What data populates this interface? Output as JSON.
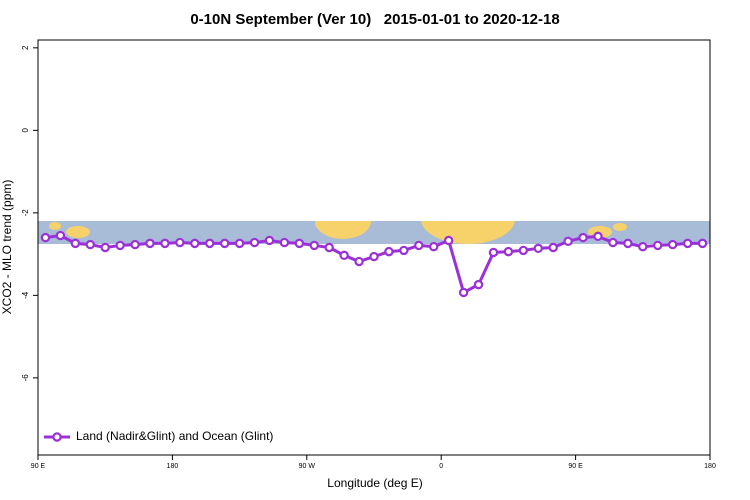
{
  "chart_data": {
    "type": "line",
    "title": "0-10N September (Ver 10)   2015-01-01 to 2020-12-18",
    "x_label": "Longitude (deg E)",
    "y_label": "XCO2 - MLO trend (ppm)",
    "x": [
      95,
      105,
      115,
      125,
      135,
      145,
      155,
      165,
      175,
      185,
      195,
      205,
      215,
      225,
      235,
      245,
      255,
      265,
      275,
      285,
      295,
      305,
      315,
      325,
      335,
      345,
      355,
      365,
      375,
      385,
      395,
      405,
      415,
      425,
      435,
      445,
      455,
      465,
      475,
      485,
      495,
      505,
      515,
      525,
      535
    ],
    "series": [
      {
        "name": "Land (Nadir&Glint) and Ocean (Glint)",
        "color": "#9b30d9",
        "values": [
          -2.6,
          -2.55,
          -2.74,
          -2.77,
          -2.84,
          -2.79,
          -2.77,
          -2.74,
          -2.74,
          -2.72,
          -2.74,
          -2.74,
          -2.74,
          -2.74,
          -2.72,
          -2.67,
          -2.72,
          -2.74,
          -2.79,
          -2.84,
          -3.03,
          -3.18,
          -3.06,
          -2.94,
          -2.91,
          -2.79,
          -2.82,
          -2.67,
          -3.93,
          -3.74,
          -2.96,
          -2.94,
          -2.91,
          -2.86,
          -2.84,
          -2.69,
          -2.6,
          -2.57,
          -2.72,
          -2.74,
          -2.82,
          -2.79,
          -2.77,
          -2.74,
          -2.74
        ]
      }
    ],
    "xlim": [
      90,
      540
    ],
    "xticks": [
      {
        "value": 90,
        "label": "90 E"
      },
      180,
      {
        "value": 270,
        "label": "90 W"
      },
      {
        "value": 360,
        "label": "0"
      },
      {
        "value": 450,
        "label": "90 E"
      },
      {
        "value": 540,
        "label": "180"
      }
    ],
    "ylim": [
      -7.87,
      2.19
    ],
    "yticks": [
      2,
      0,
      -2,
      -4,
      -6
    ],
    "legend": "bottom-left"
  }
}
